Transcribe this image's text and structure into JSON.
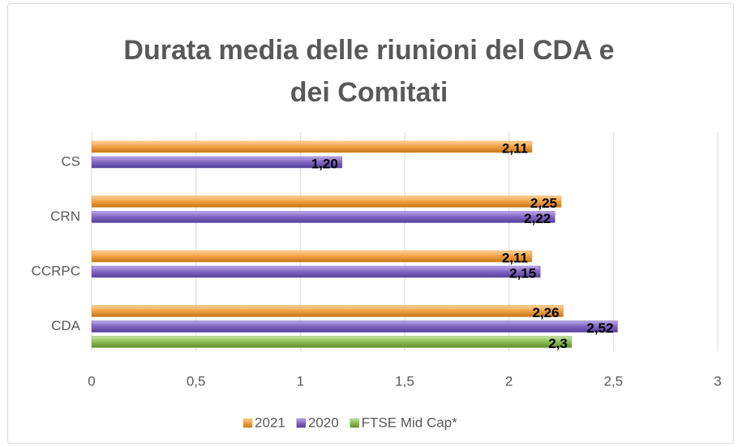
{
  "chart_data": {
    "type": "hbar",
    "title": "Durata media delle riunioni del CDA e dei Comitati",
    "categories": [
      "CS",
      "CRN",
      "CCRPC",
      "CDA"
    ],
    "series": [
      {
        "name": "2021",
        "color": "#f0a040",
        "values": [
          2.11,
          2.25,
          2.11,
          2.26
        ],
        "value_labels": [
          "2,11",
          "2,25",
          "2,11",
          "2,26"
        ]
      },
      {
        "name": "2020",
        "color": "#8064c0",
        "values": [
          1.2,
          2.22,
          2.15,
          2.52
        ],
        "value_labels": [
          "1,20",
          "2,22",
          "2,15",
          "2,52"
        ]
      },
      {
        "name": "FTSE Mid Cap*",
        "color": "#8cbc54",
        "values": [
          null,
          null,
          null,
          2.3
        ],
        "value_labels": [
          null,
          null,
          null,
          "2,3"
        ]
      }
    ],
    "xlim": [
      0,
      3
    ],
    "xticks": [
      0,
      {
        "value": 0.5,
        "label": "0,5"
      },
      1,
      {
        "value": 1.5,
        "label": "1,5"
      },
      2,
      {
        "value": 2.5,
        "label": "2,5"
      },
      3
    ],
    "grid": true,
    "legend": "bottom"
  }
}
